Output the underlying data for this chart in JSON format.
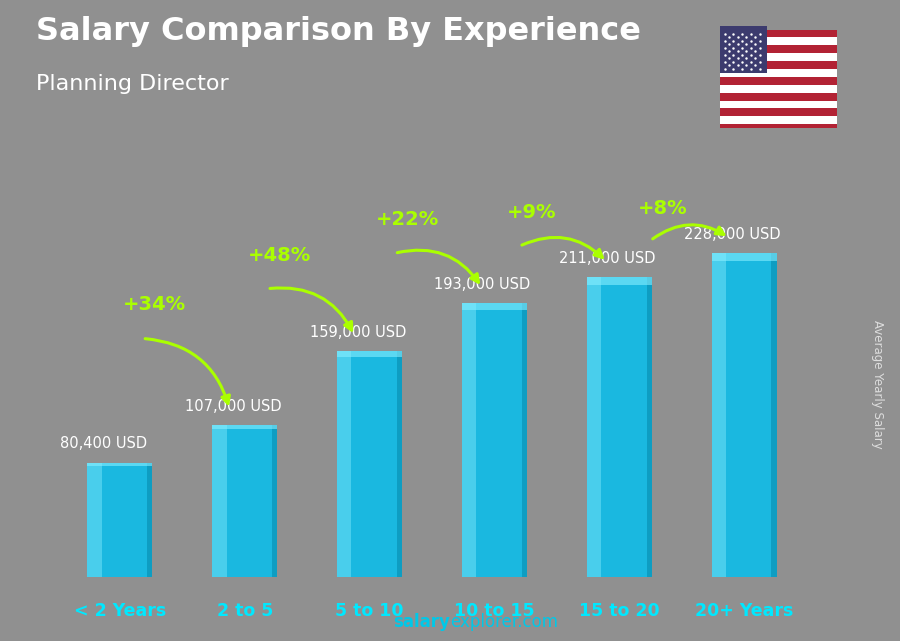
{
  "title_line1": "Salary Comparison By Experience",
  "title_line2": "Planning Director",
  "categories": [
    "< 2 Years",
    "2 to 5",
    "5 to 10",
    "10 to 15",
    "15 to 20",
    "20+ Years"
  ],
  "values": [
    80400,
    107000,
    159000,
    193000,
    211000,
    228000
  ],
  "value_labels": [
    "80,400 USD",
    "107,000 USD",
    "159,000 USD",
    "193,000 USD",
    "211,000 USD",
    "228,000 USD"
  ],
  "pct_changes": [
    "+34%",
    "+48%",
    "+22%",
    "+9%",
    "+8%"
  ],
  "bar_main_color": "#1ab8e0",
  "bar_highlight_color": "#55d4f0",
  "bar_dark_color": "#0d9abf",
  "bar_edge_color": "#0088aa",
  "pct_color": "#aaff00",
  "text_white": "#ffffff",
  "text_cyan": "#00e8ff",
  "footer_bold": "salary",
  "footer_regular": "explorer.com",
  "footer_color_bold": "#00c8e8",
  "footer_color_reg": "#00c8e8",
  "ylabel_text": "Average Yearly Salary",
  "bg_color": "#888888",
  "ylim_max": 280000,
  "bar_width": 0.52
}
